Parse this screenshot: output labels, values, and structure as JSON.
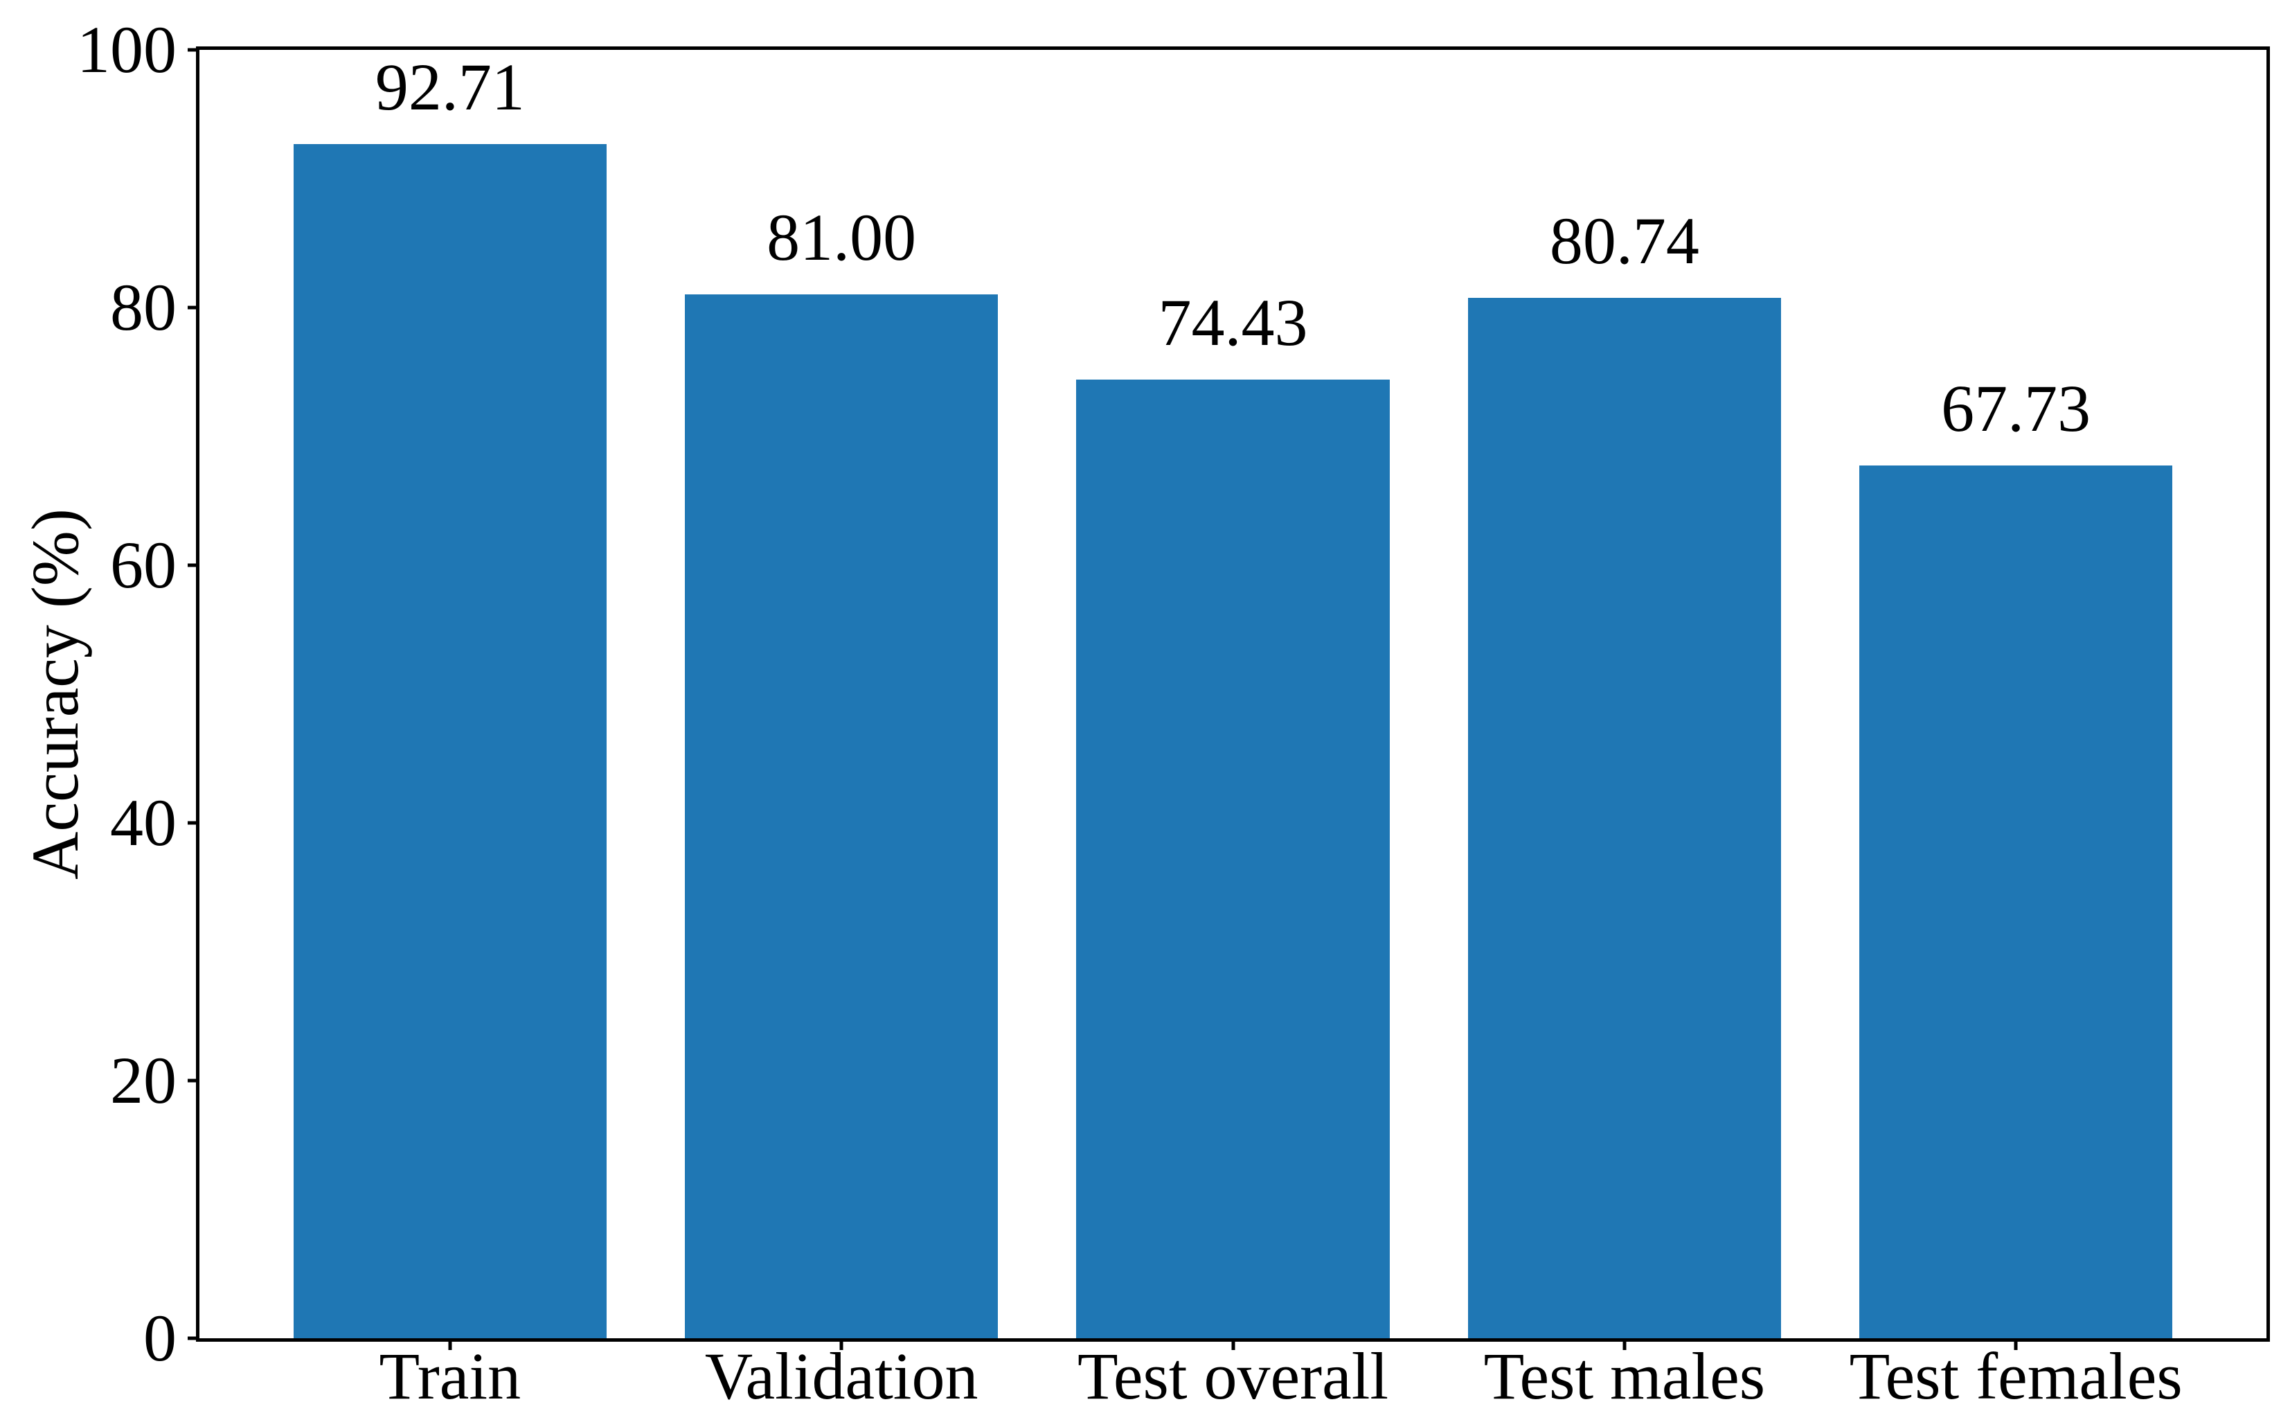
{
  "figure": {
    "background_color": "#ffffff",
    "spine_color": "#000000",
    "text_color": "#000000"
  },
  "chart_data": {
    "type": "bar",
    "title": "",
    "xlabel": "",
    "ylabel": "Accuracy (%)",
    "categories": [
      "Train",
      "Validation",
      "Test overall",
      "Test males",
      "Test females"
    ],
    "values": [
      92.71,
      81.0,
      74.43,
      80.74,
      67.73
    ],
    "value_labels": [
      "92.71",
      "81.00",
      "74.43",
      "80.74",
      "67.73"
    ],
    "ylim": [
      0,
      100
    ],
    "yticks": [
      0,
      20,
      40,
      60,
      80,
      100
    ],
    "ytick_labels": [
      "0",
      "20",
      "40",
      "60",
      "80",
      "100"
    ],
    "xlim": [
      -0.64,
      4.64
    ],
    "bar_width_units": 0.8,
    "bar_color": "#1f77b4",
    "grid": false,
    "legend": null,
    "value_label_position": "above-bar"
  }
}
